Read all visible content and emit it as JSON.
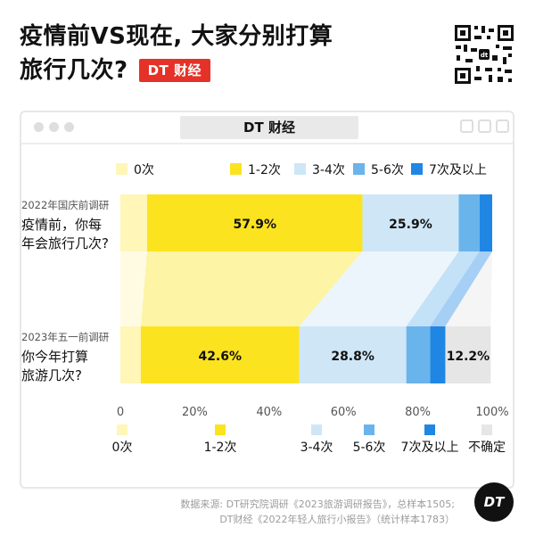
{
  "title": {
    "line1": "疫情前VS现在, 大家分别打算",
    "line2": "旅行几次?",
    "brand": "DT 财经"
  },
  "frame": {
    "brand": "DT 财经"
  },
  "colors": {
    "0次": "#fff6b8",
    "1-2次": "#fbe31f",
    "3-4次": "#cfe6f7",
    "5-6次": "#6ab4ec",
    "7次及以上": "#1f86e4",
    "不确定": "#e6e6e6"
  },
  "chart_data": {
    "type": "bar",
    "orientation": "horizontal",
    "stacked": true,
    "categories": [
      {
        "tag": "2022年国庆前调研",
        "question": [
          "疫情前，你每",
          "年会旅行几次?"
        ]
      },
      {
        "tag": "2023年五一前调研",
        "question": [
          "你今年打算",
          "旅游几次?"
        ]
      }
    ],
    "series": [
      {
        "name": "0次",
        "values": [
          7.2,
          5.5
        ],
        "labels": [
          "",
          ""
        ]
      },
      {
        "name": "1-2次",
        "values": [
          57.9,
          42.6
        ],
        "labels": [
          "57.9%",
          "42.6%"
        ]
      },
      {
        "name": "3-4次",
        "values": [
          25.9,
          28.8
        ],
        "labels": [
          "25.9%",
          "28.8%"
        ]
      },
      {
        "name": "5-6次",
        "values": [
          5.6,
          6.4
        ],
        "labels": [
          "",
          ""
        ]
      },
      {
        "name": "7次及以上",
        "values": [
          3.4,
          4.1
        ],
        "labels": [
          "",
          ""
        ]
      },
      {
        "name": "不确定",
        "values": [
          0,
          12.2
        ],
        "labels": [
          "",
          "12.2%"
        ]
      }
    ],
    "top_legend": [
      "0次",
      "1-2次",
      "3-4次",
      "5-6次",
      "7次及以上"
    ],
    "bottom_legend": [
      "0次",
      "1-2次",
      "3-4次",
      "5-6次",
      "7次及以上",
      "不确定"
    ],
    "xlim": [
      0,
      100
    ],
    "xticks": [
      "0",
      "20%",
      "40%",
      "60%",
      "80%",
      "100%"
    ]
  },
  "footer": {
    "line1": "数据来源: DT研究院调研《2023旅游调研报告》，总样本1505;",
    "line2": "DT财经《2022年轻人旅行小报告》（统计样本1783）"
  },
  "logo": "DT"
}
